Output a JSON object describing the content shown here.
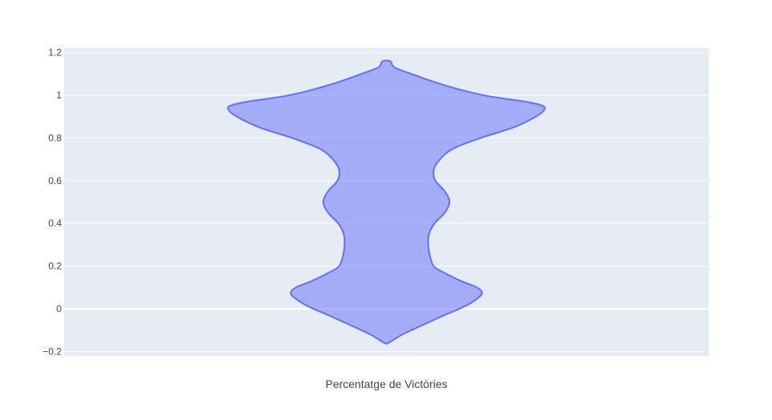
{
  "chart_data": {
    "type": "violin",
    "title": "",
    "xlabel": "Percentatge de Victòries",
    "ylabel": "",
    "ylim": [
      -0.22,
      1.22
    ],
    "yticks": [
      -0.2,
      0,
      0.2,
      0.4,
      0.6,
      0.8,
      1,
      1.2
    ],
    "ytick_labels": [
      "−0.2",
      "0",
      "0.2",
      "0.4",
      "0.6",
      "0.8",
      "1",
      "1.2"
    ],
    "grid": true,
    "legend": "none",
    "series": [
      {
        "fill_color": "#636efa",
        "line_color": "#636efa",
        "density": {
          "y": [
            -0.158,
            -0.12,
            -0.07,
            -0.03,
            0.0,
            0.03,
            0.07,
            0.1,
            0.13,
            0.17,
            0.2,
            0.25,
            0.3,
            0.35,
            0.4,
            0.45,
            0.5,
            0.55,
            0.6,
            0.65,
            0.7,
            0.75,
            0.8,
            0.85,
            0.9,
            0.93,
            0.95,
            0.97,
            1.0,
            1.05,
            1.1,
            1.13,
            1.158
          ],
          "half_width": [
            0.03,
            0.2,
            0.49,
            0.73,
            0.92,
            1.08,
            1.21,
            1.15,
            0.95,
            0.73,
            0.6,
            0.55,
            0.53,
            0.54,
            0.61,
            0.74,
            0.8,
            0.74,
            0.62,
            0.6,
            0.68,
            0.85,
            1.2,
            1.62,
            1.9,
            2.0,
            1.98,
            1.75,
            1.22,
            0.7,
            0.31,
            0.1,
            0.05
          ]
        }
      }
    ]
  }
}
